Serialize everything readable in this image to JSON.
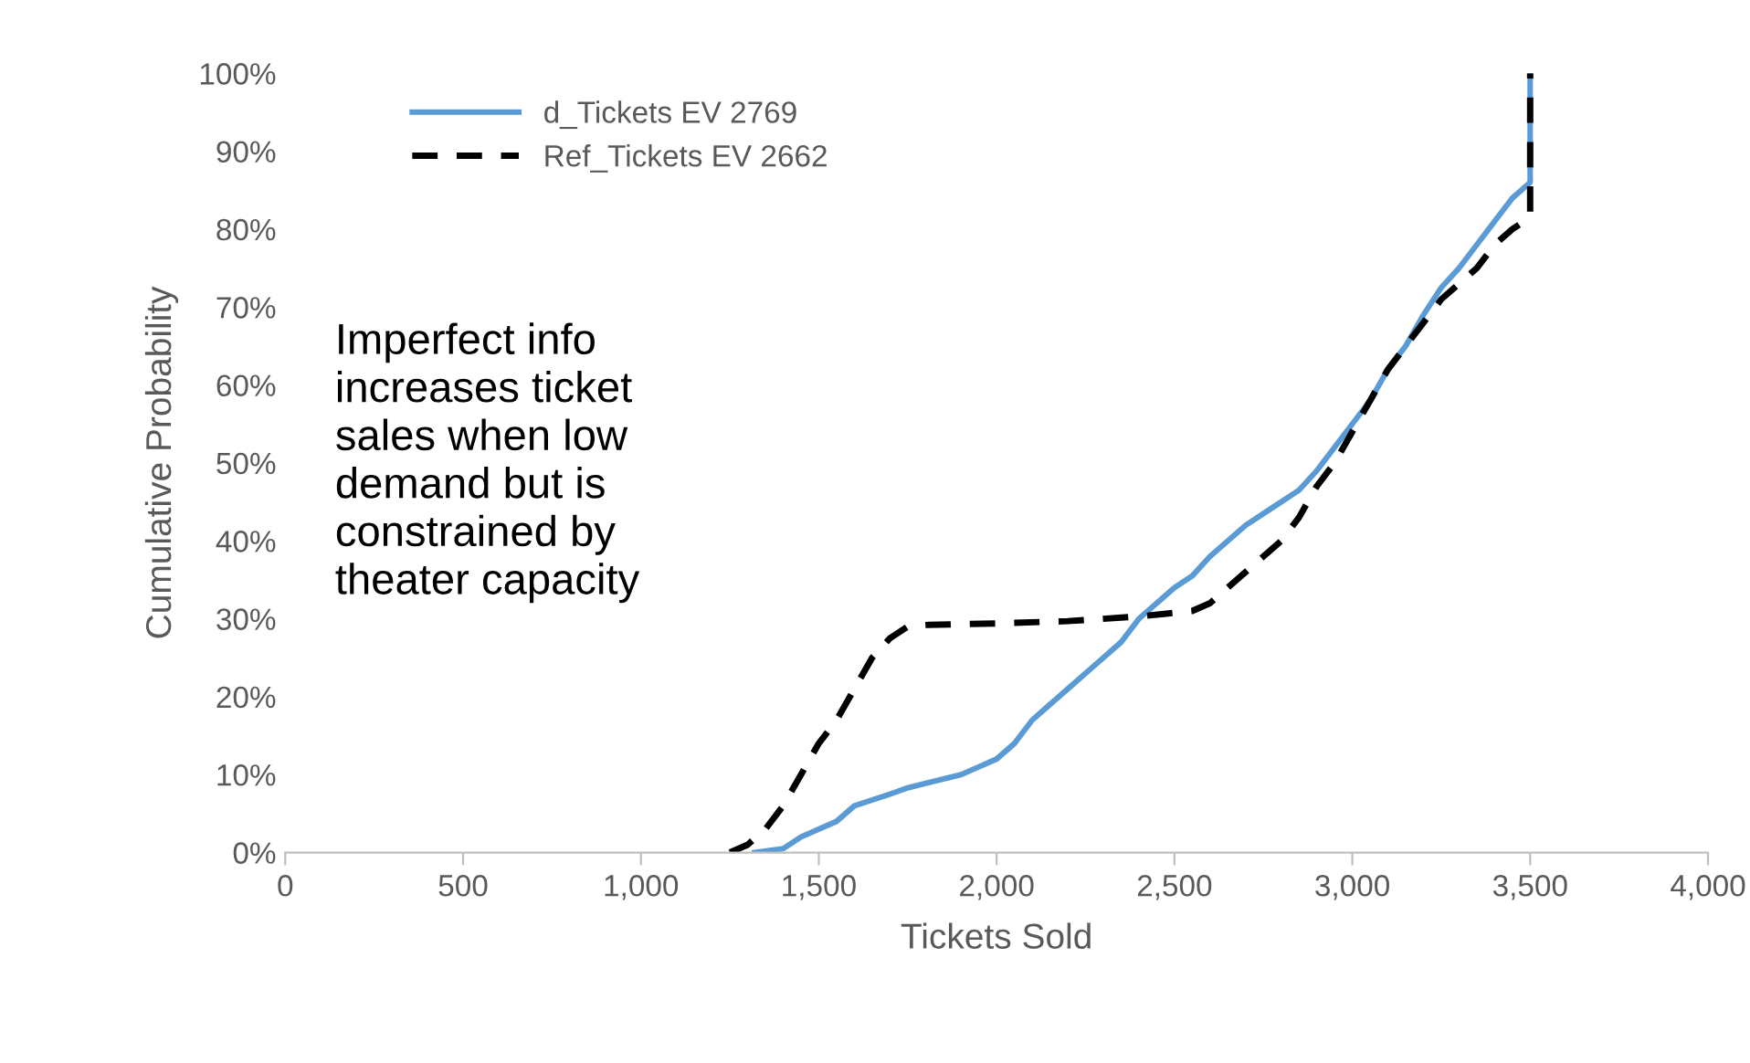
{
  "chart_data": {
    "type": "line",
    "xlabel": "Tickets Sold",
    "ylabel": "Cumulative Probability",
    "xlim": [
      0,
      4000
    ],
    "xticks": [
      {
        "value": 0,
        "label": "0"
      },
      {
        "value": 500,
        "label": "500"
      },
      {
        "value": 1000,
        "label": "1,000"
      },
      {
        "value": 1500,
        "label": "1,500"
      },
      {
        "value": 2000,
        "label": "2,000"
      },
      {
        "value": 2500,
        "label": "2,500"
      },
      {
        "value": 3000,
        "label": "3,000"
      },
      {
        "value": 3500,
        "label": "3,500"
      },
      {
        "value": 4000,
        "label": "4,000"
      }
    ],
    "ylim": [
      0,
      100
    ],
    "yticks": [
      {
        "value": 0,
        "label": "0%"
      },
      {
        "value": 10,
        "label": "10%"
      },
      {
        "value": 20,
        "label": "20%"
      },
      {
        "value": 30,
        "label": "30%"
      },
      {
        "value": 40,
        "label": "40%"
      },
      {
        "value": 50,
        "label": "50%"
      },
      {
        "value": 60,
        "label": "60%"
      },
      {
        "value": 70,
        "label": "70%"
      },
      {
        "value": 80,
        "label": "80%"
      },
      {
        "value": 90,
        "label": "90%"
      },
      {
        "value": 100,
        "label": "100%"
      }
    ],
    "grid": false,
    "legend": "top left",
    "marker": "none",
    "annotations": [
      "Imperfect info\nincreases ticket\nsales when low\ndemand but is\nconstrained by\ntheater capacity"
    ],
    "series": [
      {
        "name": "d_Tickets EV 2769",
        "color": "#5b9bd5",
        "line_style": "solid",
        "x": [
          1320,
          1400,
          1450,
          1550,
          1600,
          1700,
          1750,
          1900,
          1950,
          2000,
          2050,
          2100,
          2150,
          2200,
          2250,
          2300,
          2350,
          2400,
          2450,
          2500,
          2550,
          2600,
          2650,
          2700,
          2750,
          2800,
          2850,
          2900,
          2950,
          3000,
          3050,
          3100,
          3150,
          3200,
          3250,
          3300,
          3350,
          3400,
          3450,
          3500,
          3500
        ],
        "values": [
          0,
          0.5,
          2,
          4,
          6,
          7.5,
          8.3,
          10,
          11,
          12,
          14,
          17,
          19,
          21,
          23,
          25,
          27,
          30,
          32,
          34,
          35.5,
          38,
          40,
          42,
          43.5,
          45,
          46.5,
          49,
          52,
          55,
          58,
          62,
          65,
          69,
          72.5,
          75,
          78,
          81,
          84,
          86,
          100
        ]
      },
      {
        "name": "Ref_Tickets EV 2662",
        "color": "#000000",
        "line_style": "dashed",
        "x": [
          1250,
          1300,
          1350,
          1400,
          1450,
          1500,
          1550,
          1600,
          1650,
          1700,
          1750,
          1800,
          2000,
          2200,
          2400,
          2550,
          2600,
          2700,
          2800,
          2850,
          2900,
          2950,
          3000,
          3050,
          3100,
          3150,
          3200,
          3250,
          3300,
          3350,
          3400,
          3450,
          3500,
          3500
        ],
        "values": [
          0,
          1,
          3,
          6,
          10,
          14,
          17,
          21,
          25,
          27.5,
          29,
          29.2,
          29.4,
          29.7,
          30.3,
          31,
          32,
          36,
          40,
          43,
          47,
          50,
          54,
          58,
          62,
          65,
          68,
          71,
          73,
          75,
          78,
          80,
          81.5,
          100
        ]
      }
    ]
  }
}
